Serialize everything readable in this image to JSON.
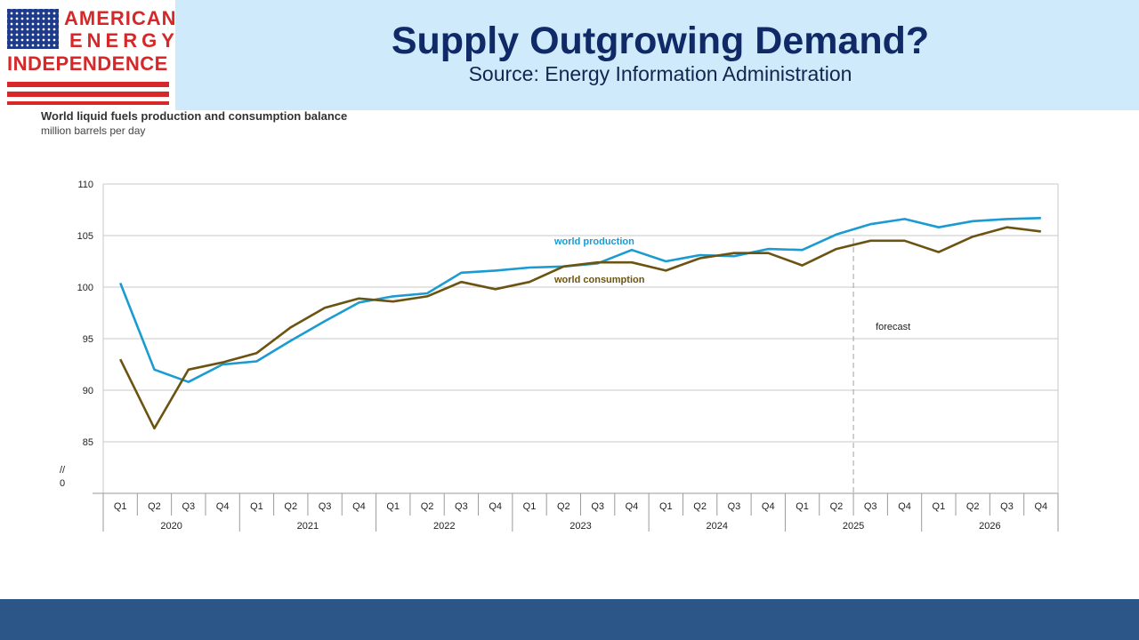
{
  "logo": {
    "line1": "AMERICAN",
    "line2": "ENERGY",
    "line3": "INDEPENDENCE",
    "colors": {
      "red": "#d62828",
      "blue": "#1e3a8a"
    }
  },
  "header": {
    "title": "Supply Outgrowing Demand?",
    "source": "Source: Energy Information Administration"
  },
  "chart_data": {
    "type": "line",
    "title": "World liquid fuels production and consumption balance",
    "ylabel": "million barrels per day",
    "ylim": [
      85,
      110
    ],
    "yticks": [
      110,
      105,
      100,
      95,
      90,
      85
    ],
    "axis_break_label": "//",
    "axis_zero_label": "0",
    "quarters": [
      "Q1",
      "Q2",
      "Q3",
      "Q4",
      "Q1",
      "Q2",
      "Q3",
      "Q4",
      "Q1",
      "Q2",
      "Q3",
      "Q4",
      "Q1",
      "Q2",
      "Q3",
      "Q4",
      "Q1",
      "Q2",
      "Q3",
      "Q4",
      "Q1",
      "Q2",
      "Q3",
      "Q4",
      "Q1",
      "Q2",
      "Q3",
      "Q4"
    ],
    "years": [
      "2020",
      "2021",
      "2022",
      "2023",
      "2024",
      "2025",
      "2026"
    ],
    "series": [
      {
        "name": "world production",
        "color": "#1a9bd1",
        "values": [
          100.4,
          92.0,
          90.8,
          92.5,
          92.8,
          94.8,
          96.7,
          98.5,
          99.1,
          99.4,
          101.4,
          101.6,
          101.9,
          102.0,
          102.3,
          103.6,
          102.5,
          103.1,
          103.0,
          103.7,
          103.6,
          105.1,
          106.1,
          106.6,
          105.8,
          106.4,
          106.6,
          106.7
        ]
      },
      {
        "name": "world consumption",
        "color": "#6b5312",
        "values": [
          93.0,
          86.3,
          92.0,
          92.7,
          93.6,
          96.1,
          98.0,
          98.9,
          98.6,
          99.1,
          100.5,
          99.8,
          100.5,
          102.0,
          102.4,
          102.4,
          101.6,
          102.8,
          103.3,
          103.3,
          102.1,
          103.7,
          104.5,
          104.5,
          103.4,
          104.9,
          105.8,
          105.4
        ]
      }
    ],
    "forecast_label": "forecast",
    "forecast_start_index": 22,
    "grid": true,
    "colors": {
      "grid": "#c8c8c8",
      "forecast_line": "#a0a0a0",
      "axis": "#9a9a9a"
    }
  },
  "footer": {
    "color": "#2b5687"
  }
}
